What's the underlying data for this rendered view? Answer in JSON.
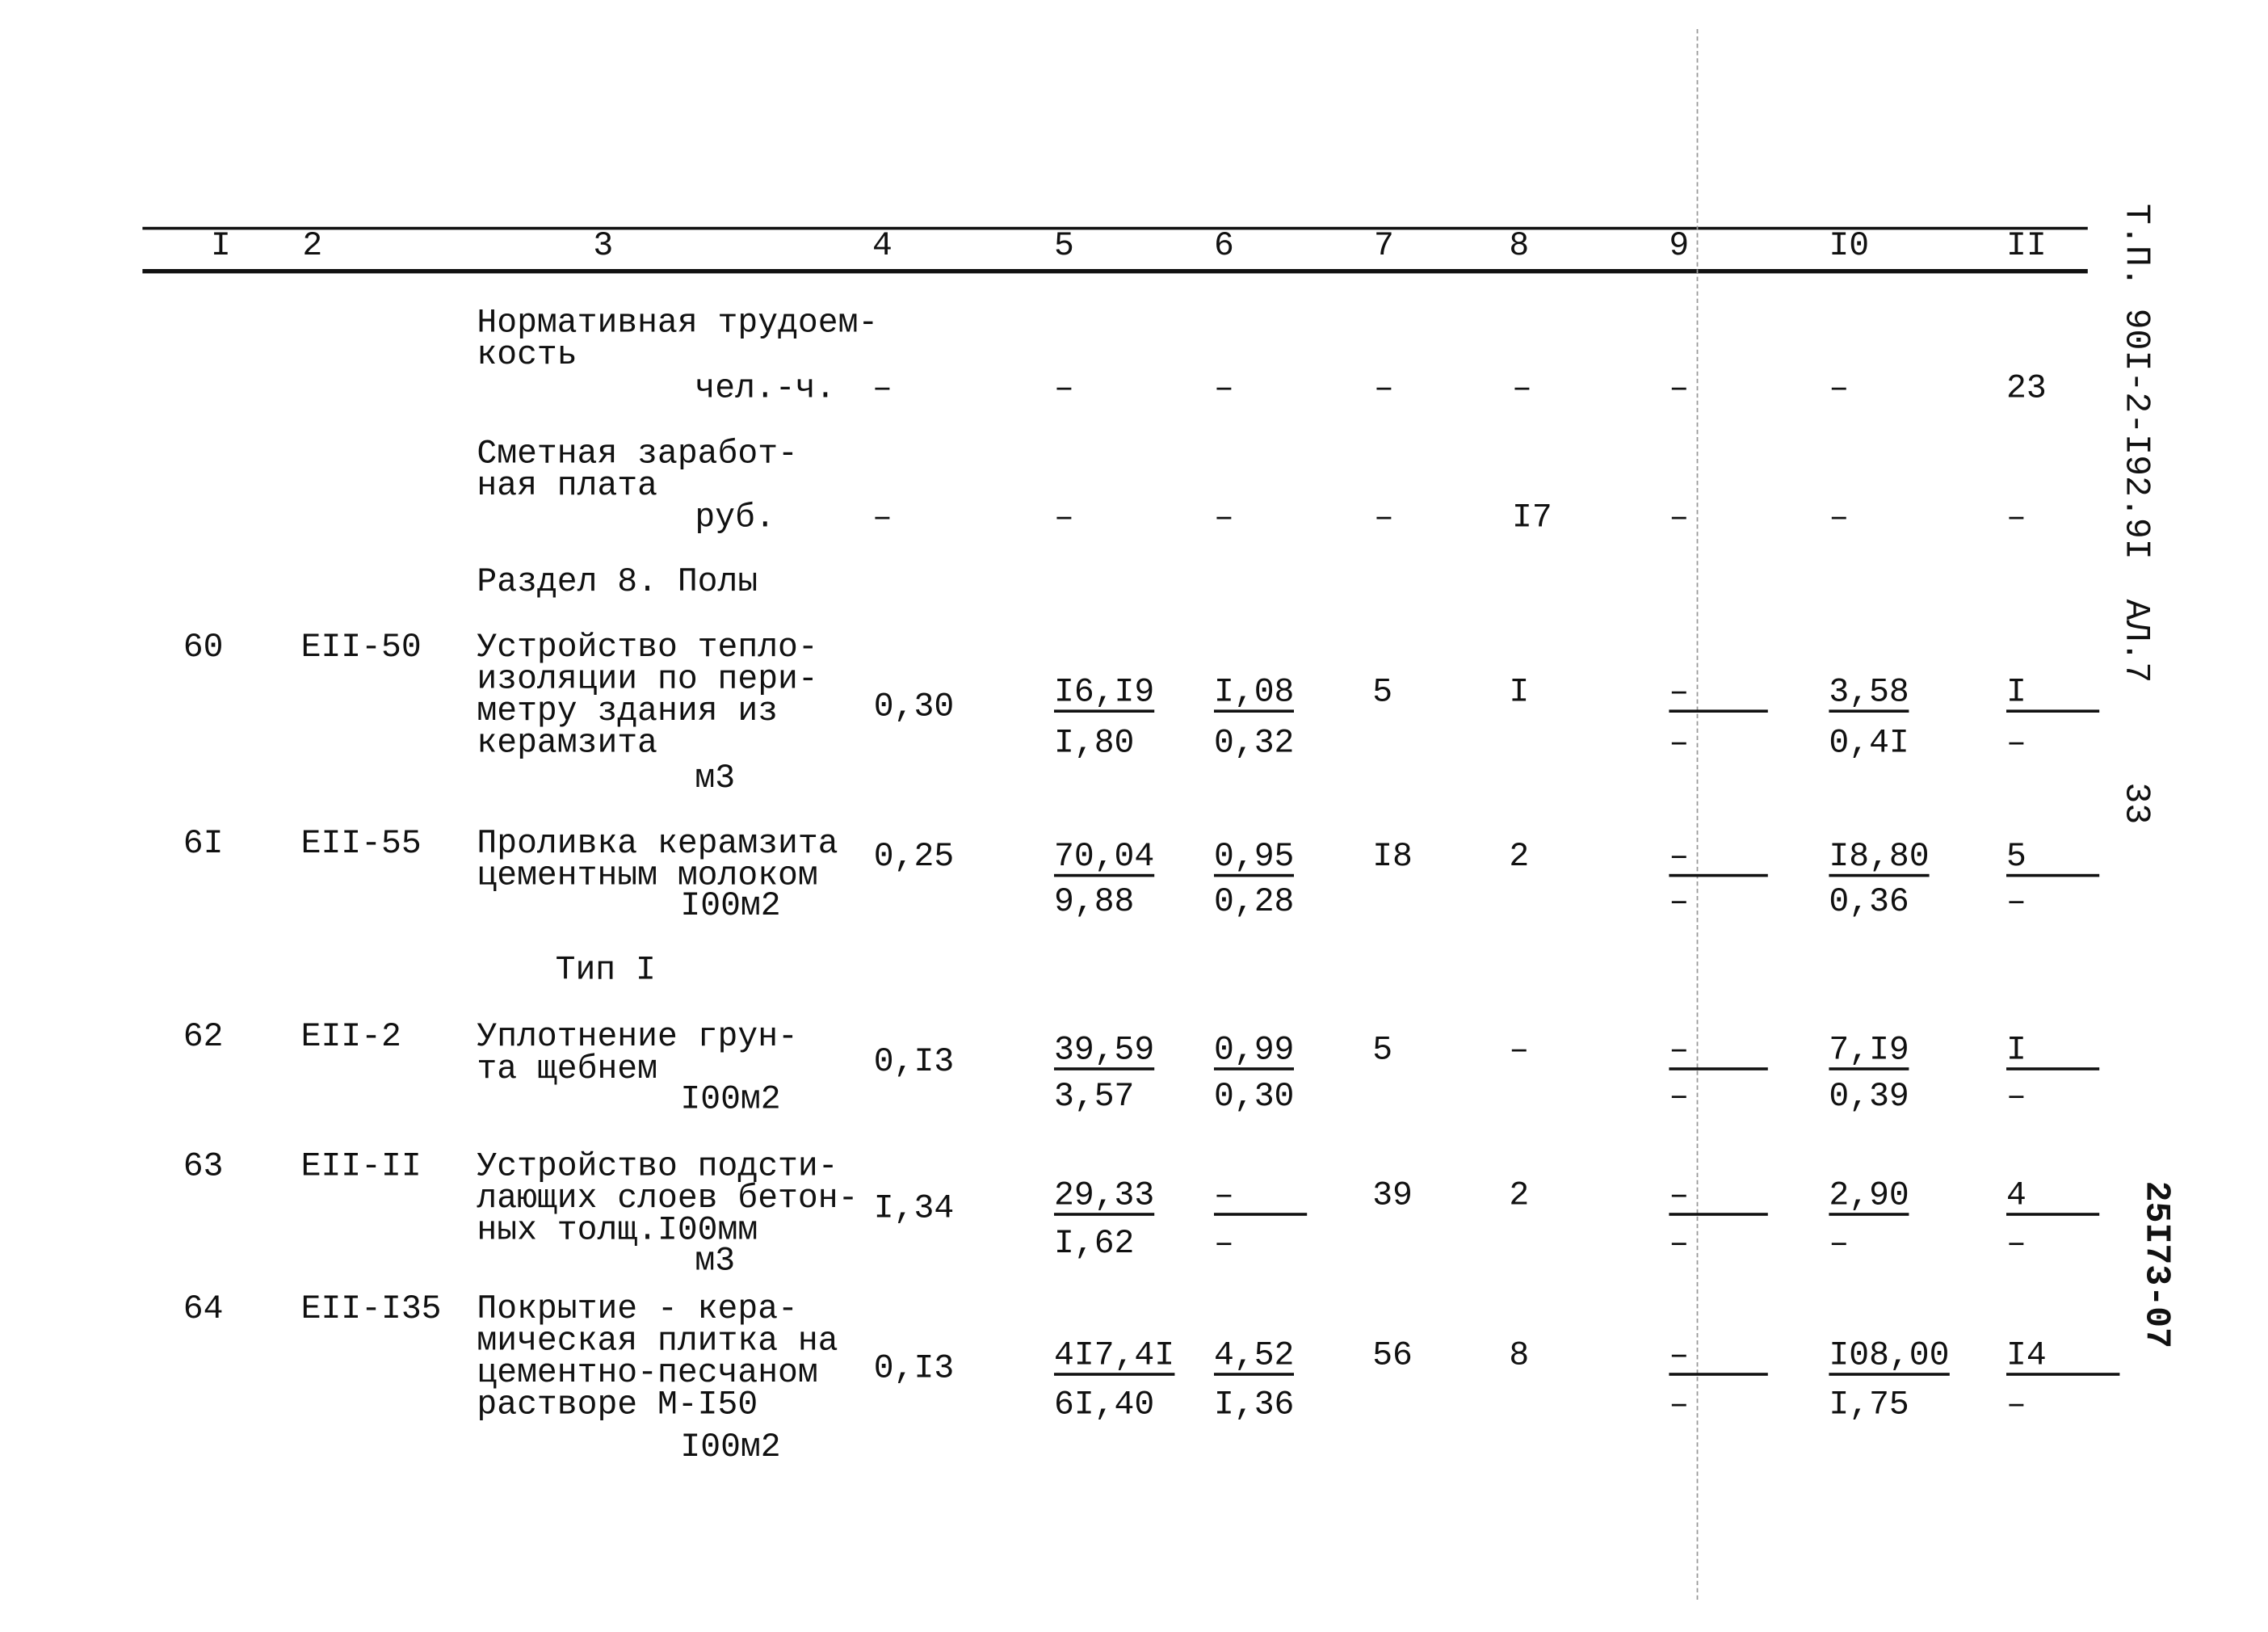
{
  "header": {
    "columns": [
      "I",
      "2",
      "3",
      "4",
      "5",
      "6",
      "7",
      "8",
      "9",
      "I0",
      "II"
    ]
  },
  "side_labels": {
    "doc_code": "Т.П. 90I-2-I92.9I",
    "album": "АЛ.7",
    "page": "33",
    "inventory": "25I73-07"
  },
  "summary_rows": [
    {
      "lines": [
        "Нормативная трудоем-",
        "кость"
      ],
      "unit": "чел.-ч.",
      "values": [
        "–",
        "–",
        "–",
        "–",
        "–",
        "–",
        "–",
        "23"
      ]
    },
    {
      "lines": [
        "Сметная заработ-",
        "ная плата"
      ],
      "unit": "руб.",
      "values": [
        "–",
        "–",
        "–",
        "–",
        "I7",
        "–",
        "–",
        "–"
      ]
    }
  ],
  "section_title": "Раздел 8. Полы",
  "subsection_title": "Тип I",
  "rows": [
    {
      "num": "60",
      "code": "EII-50",
      "lines": [
        "Устройство тепло-",
        "изоляции по пери-",
        "метру здания из",
        "керамзита"
      ],
      "unit": "м3",
      "c4": "0,30",
      "c5": [
        "I6,I9",
        "I,80"
      ],
      "c6": [
        "I,08",
        "0,32"
      ],
      "c7": "5",
      "c8": "I",
      "c9": [
        "–",
        "–"
      ],
      "c10": [
        "3,58",
        "0,4I"
      ],
      "c11": [
        "I",
        "–"
      ]
    },
    {
      "num": "6I",
      "code": "EII-55",
      "lines": [
        "Проливка керамзита",
        "цементным молоком"
      ],
      "unit": "I00м2",
      "c4": "0,25",
      "c5": [
        "70,04",
        "9,88"
      ],
      "c6": [
        "0,95",
        "0,28"
      ],
      "c7": "I8",
      "c8": "2",
      "c9": [
        "–",
        "–"
      ],
      "c10": [
        "I8,80",
        "0,36"
      ],
      "c11": [
        "5",
        "–"
      ]
    },
    {
      "num": "62",
      "code": "EII-2",
      "lines": [
        "Уплотнение грун-",
        "та щебнем"
      ],
      "unit": "I00м2",
      "c4": "0,I3",
      "c5": [
        "39,59",
        "3,57"
      ],
      "c6": [
        "0,99",
        "0,30"
      ],
      "c7": "5",
      "c8": "–",
      "c9": [
        "–",
        "–"
      ],
      "c10": [
        "7,I9",
        "0,39"
      ],
      "c11": [
        "I",
        "–"
      ]
    },
    {
      "num": "63",
      "code": "EII-II",
      "lines": [
        "Устройство подсти-",
        "лающих слоев бетон-",
        "ных толщ.I00мм"
      ],
      "unit": "м3",
      "c4": "I,34",
      "c5": [
        "29,33",
        "I,62"
      ],
      "c6": [
        "–",
        "–"
      ],
      "c7": "39",
      "c8": "2",
      "c9": [
        "–",
        "–"
      ],
      "c10": [
        "2,90",
        "–"
      ],
      "c11": [
        "4",
        "–"
      ]
    },
    {
      "num": "64",
      "code": "EII-I35",
      "lines": [
        "Покрытие - кера-",
        "мическая плитка на",
        "цементно-песчаном",
        "растворе М-I50"
      ],
      "unit": "I00м2",
      "c4": "0,I3",
      "c5": [
        "4I7,4I",
        "6I,40"
      ],
      "c6": [
        "4,52",
        "I,36"
      ],
      "c7": "56",
      "c8": "8",
      "c9": [
        "–",
        "–"
      ],
      "c10": [
        "I08,00",
        "I,75"
      ],
      "c11": [
        "I4",
        "–"
      ]
    }
  ]
}
